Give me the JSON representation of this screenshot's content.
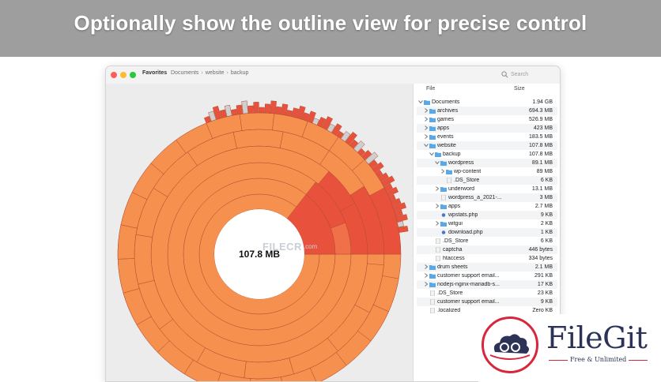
{
  "banner": {
    "text": "Optionally show the outline view for precise control"
  },
  "window": {
    "favorites_label": "Favorites",
    "breadcrumbs": [
      "Documents",
      "website",
      "backup"
    ],
    "breadcrumb_sep": "›",
    "search_placeholder": "Search"
  },
  "chart": {
    "center_label": "107.8 MB"
  },
  "outline": {
    "col_file": "File",
    "col_size": "Size",
    "rows": [
      {
        "name": "Documents",
        "size": "1.94 GB",
        "level": 0,
        "chev": "v",
        "icon": "folder-icon"
      },
      {
        "name": "archives",
        "size": "694.3 MB",
        "level": 1,
        "chev": ">",
        "icon": "folder-icon"
      },
      {
        "name": "games",
        "size": "526.9 MB",
        "level": 1,
        "chev": ">",
        "icon": "folder-icon"
      },
      {
        "name": "apps",
        "size": "423 MB",
        "level": 1,
        "chev": ">",
        "icon": "folder-icon"
      },
      {
        "name": "events",
        "size": "183.5 MB",
        "level": 1,
        "chev": ">",
        "icon": "folder-icon"
      },
      {
        "name": "website",
        "size": "107.8 MB",
        "level": 1,
        "chev": "v",
        "icon": "folder-icon"
      },
      {
        "name": "backup",
        "size": "107.8 MB",
        "level": 2,
        "chev": "v",
        "icon": "folder-icon"
      },
      {
        "name": "wordpress",
        "size": "89.1 MB",
        "level": 3,
        "chev": "v",
        "icon": "folder-icon"
      },
      {
        "name": "wp-content",
        "size": "89 MB",
        "level": 4,
        "chev": ">",
        "icon": "folder-icon"
      },
      {
        "name": ".DS_Store",
        "size": "6 KB",
        "level": 4,
        "chev": "",
        "icon": "file-icon"
      },
      {
        "name": "underword",
        "size": "13.1 MB",
        "level": 3,
        "chev": ">",
        "icon": "folder-icon"
      },
      {
        "name": "wordpress_a_2021-...",
        "size": "3 MB",
        "level": 3,
        "chev": "",
        "icon": "file-icon"
      },
      {
        "name": "apps",
        "size": "2.7 MB",
        "level": 3,
        "chev": ">",
        "icon": "folder-icon"
      },
      {
        "name": "wpstats.php",
        "size": "9 KB",
        "level": 3,
        "chev": "",
        "icon": "php-file-icon"
      },
      {
        "name": "witgui",
        "size": "2 KB",
        "level": 3,
        "chev": ">",
        "icon": "folder-icon"
      },
      {
        "name": "download.php",
        "size": "1 KB",
        "level": 3,
        "chev": "",
        "icon": "php-file-icon"
      },
      {
        "name": ".DS_Store",
        "size": "6 KB",
        "level": 2,
        "chev": "",
        "icon": "file-icon"
      },
      {
        "name": "captcha",
        "size": "446 bytes",
        "level": 2,
        "chev": "",
        "icon": "file-icon"
      },
      {
        "name": "htaccess",
        "size": "334 bytes",
        "level": 2,
        "chev": "",
        "icon": "file-icon"
      },
      {
        "name": "drum sheets",
        "size": "2.1 MB",
        "level": 1,
        "chev": ">",
        "icon": "folder-icon"
      },
      {
        "name": "customer support email...",
        "size": "291 KB",
        "level": 1,
        "chev": ">",
        "icon": "folder-icon"
      },
      {
        "name": "nodejs-nginx-mariadb-s...",
        "size": "17 KB",
        "level": 1,
        "chev": ">",
        "icon": "folder-icon"
      },
      {
        "name": ".DS_Store",
        "size": "23 KB",
        "level": 1,
        "chev": "",
        "icon": "file-icon"
      },
      {
        "name": "customer support email...",
        "size": "9 KB",
        "level": 1,
        "chev": "",
        "icon": "file-icon"
      },
      {
        "name": ".localized",
        "size": "Zero KB",
        "level": 1,
        "chev": "",
        "icon": "file-icon"
      }
    ]
  },
  "watermark": {
    "text": "FILECR",
    "suffix": ".com"
  },
  "brand": {
    "name": "FileGit",
    "tagline": "Free & Unlimited"
  },
  "colors": {
    "folder": "#5aa9e6",
    "ring_dark": "#e8523d",
    "ring_mid": "#f0704a",
    "ring_light": "#f5904f",
    "brand_red": "#d8263b",
    "brand_navy": "#2d3357"
  }
}
